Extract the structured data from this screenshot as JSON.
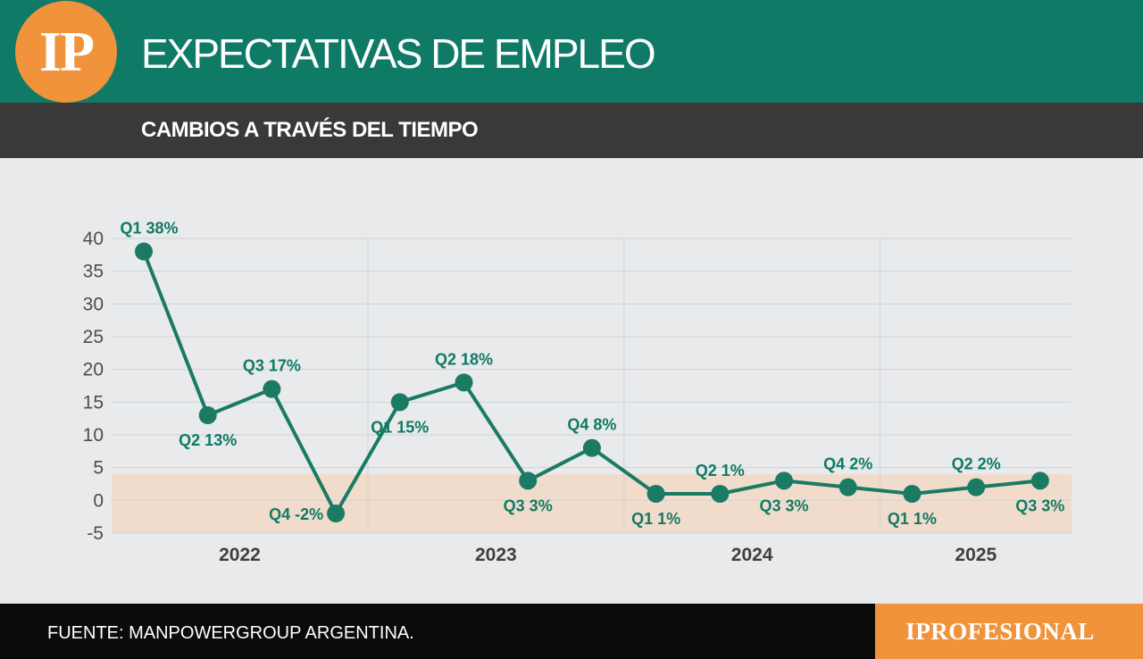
{
  "header": {
    "logo_text": "IP",
    "title": "EXPECTATIVAS DE EMPLEO",
    "subtitle": "CAMBIOS A TRAVÉS DEL TIEMPO"
  },
  "footer": {
    "source": "FUENTE: MANPOWERGROUP ARGENTINA.",
    "brand": "IPROFESIONAL"
  },
  "colors": {
    "header_green": "#0f7a66",
    "line_green": "#1a7a64",
    "accent_orange": "#f0933a",
    "band_fill": "#f1dccb",
    "dark_bar": "#3b3838"
  },
  "chart_data": {
    "type": "line",
    "title": "",
    "xlabel": "",
    "ylabel": "",
    "ylim": [
      -5,
      40
    ],
    "yticks": [
      40,
      35,
      30,
      25,
      20,
      15,
      10,
      5,
      0,
      -5
    ],
    "grid": true,
    "years": [
      "2022",
      "2023",
      "2024",
      "2025"
    ],
    "band": [
      -5,
      4
    ],
    "points": [
      {
        "label": "Q1 38%",
        "value": 38,
        "label_pos": "above"
      },
      {
        "label": "Q2 13%",
        "value": 13,
        "label_pos": "below"
      },
      {
        "label": "Q3 17%",
        "value": 17,
        "label_pos": "above"
      },
      {
        "label": "Q4 -2%",
        "value": -2,
        "label_pos": "left"
      },
      {
        "label": "Q1 15%",
        "value": 15,
        "label_pos": "below"
      },
      {
        "label": "Q2 18%",
        "value": 18,
        "label_pos": "above"
      },
      {
        "label": "Q3 3%",
        "value": 3,
        "label_pos": "below"
      },
      {
        "label": "Q4 8%",
        "value": 8,
        "label_pos": "above"
      },
      {
        "label": "Q1 1%",
        "value": 1,
        "label_pos": "below"
      },
      {
        "label": "Q2 1%",
        "value": 1,
        "label_pos": "above"
      },
      {
        "label": "Q3 3%",
        "value": 3,
        "label_pos": "below"
      },
      {
        "label": "Q4 2%",
        "value": 2,
        "label_pos": "above"
      },
      {
        "label": "Q1 1%",
        "value": 1,
        "label_pos": "below"
      },
      {
        "label": "Q2 2%",
        "value": 2,
        "label_pos": "above"
      },
      {
        "label": "Q3 3%",
        "value": 3,
        "label_pos": "below"
      }
    ]
  }
}
